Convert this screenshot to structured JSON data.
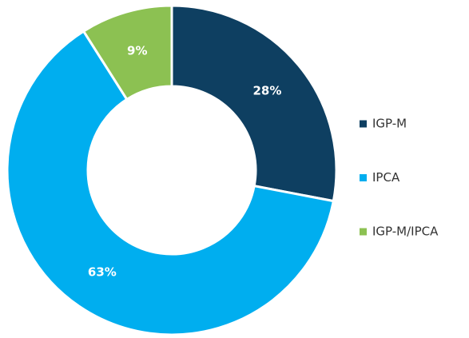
{
  "chart_data": {
    "type": "donut",
    "categories": [
      "IGP-M",
      "IPCA",
      "IGP-M/IPCA"
    ],
    "values": [
      28,
      63,
      9
    ],
    "value_labels": [
      "28%",
      "63%",
      "9%"
    ],
    "colors": [
      "#0e3f61",
      "#00aeef",
      "#8cc152"
    ],
    "legend": "right"
  }
}
